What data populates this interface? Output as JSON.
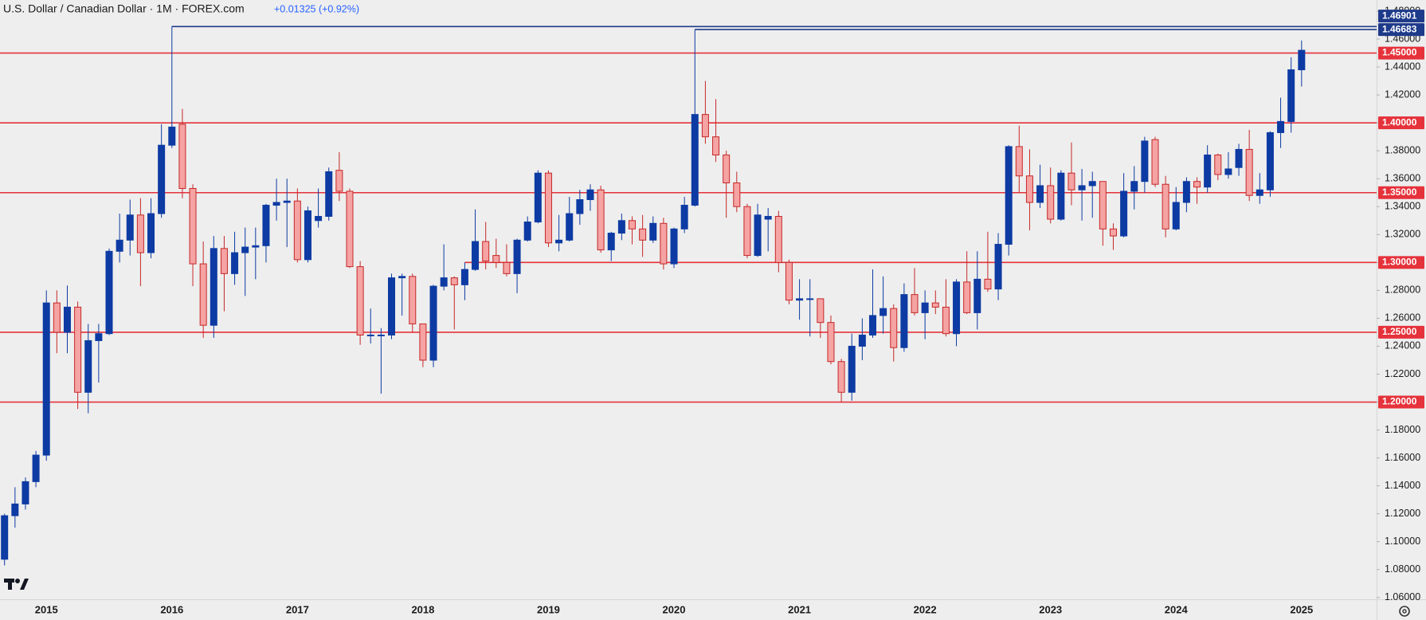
{
  "chart_data": {
    "type": "candlestick",
    "title": "U.S. Dollar / Canadian Dollar · 1M · FOREX.com",
    "change": "+0.01325 (+0.92%)",
    "categories": [
      null,
      null,
      null,
      null,
      "2015",
      null,
      null,
      null,
      null,
      null,
      null,
      null,
      null,
      null,
      null,
      null,
      "2016",
      null,
      null,
      null,
      null,
      null,
      null,
      null,
      null,
      null,
      null,
      null,
      "2017",
      null,
      null,
      null,
      null,
      null,
      null,
      null,
      null,
      null,
      null,
      null,
      "2018",
      null,
      null,
      null,
      null,
      null,
      null,
      null,
      null,
      null,
      null,
      null,
      "2019",
      null,
      null,
      null,
      null,
      null,
      null,
      null,
      null,
      null,
      null,
      null,
      "2020",
      null,
      null,
      null,
      null,
      null,
      null,
      null,
      null,
      null,
      null,
      null,
      "2021",
      null,
      null,
      null,
      null,
      null,
      null,
      null,
      null,
      null,
      null,
      null,
      "2022",
      null,
      null,
      null,
      null,
      null,
      null,
      null,
      null,
      null,
      null,
      null,
      "2023",
      null,
      null,
      null,
      null,
      null,
      null,
      null,
      null,
      null,
      null,
      null,
      "2024",
      null,
      null,
      null,
      null,
      null,
      null,
      null,
      null,
      null,
      null,
      null,
      "2025"
    ],
    "open": [
      1.0874,
      1.1186,
      1.127,
      1.143,
      1.162,
      1.271,
      1.25,
      1.268,
      1.207,
      1.244,
      1.249,
      1.308,
      1.316,
      1.334,
      1.307,
      1.335,
      1.384,
      1.399,
      1.353,
      1.299,
      1.255,
      1.31,
      1.292,
      1.307,
      1.311,
      1.312,
      1.341,
      1.343,
      1.344,
      1.302,
      1.33,
      1.333,
      1.366,
      1.351,
      1.297,
      1.248,
      1.248,
      1.248,
      1.289,
      1.29,
      1.256,
      1.23,
      1.283,
      1.289,
      1.284,
      1.295,
      1.315,
      1.305,
      1.3,
      1.292,
      1.316,
      1.329,
      1.364,
      1.314,
      1.316,
      1.335,
      1.345,
      1.352,
      1.309,
      1.321,
      1.33,
      1.324,
      1.316,
      1.328,
      1.299,
      1.324,
      1.341,
      1.406,
      1.39,
      1.377,
      1.357,
      1.34,
      1.305,
      1.331,
      1.333,
      1.3,
      1.273,
      1.274,
      1.274,
      1.257,
      1.229,
      1.207,
      1.24,
      1.248,
      1.262,
      1.267,
      1.239,
      1.277,
      1.264,
      1.271,
      1.268,
      1.249,
      1.286,
      1.264,
      1.288,
      1.281,
      1.313,
      1.383,
      1.362,
      1.343,
      1.355,
      1.331,
      1.364,
      1.352,
      1.355,
      1.358,
      1.324,
      1.319,
      1.351,
      1.358,
      1.388,
      1.356,
      1.324,
      1.343,
      1.358,
      1.354,
      1.377,
      1.363,
      1.368,
      1.381,
      1.348,
      1.352,
      1.393,
      1.401,
      1.438
    ],
    "high": [
      1.12,
      1.139,
      1.146,
      1.165,
      1.28,
      1.28,
      1.2835,
      1.272,
      1.256,
      1.256,
      1.31,
      1.335,
      1.345,
      1.346,
      1.346,
      1.399,
      1.46901,
      1.41,
      1.356,
      1.315,
      1.319,
      1.319,
      1.322,
      1.325,
      1.325,
      1.342,
      1.36,
      1.36,
      1.353,
      1.34,
      1.353,
      1.368,
      1.379,
      1.353,
      1.301,
      1.267,
      1.253,
      1.292,
      1.292,
      1.292,
      1.256,
      1.284,
      1.313,
      1.29,
      1.3,
      1.338,
      1.329,
      1.317,
      1.313,
      1.317,
      1.333,
      1.366,
      1.366,
      1.334,
      1.347,
      1.352,
      1.356,
      1.355,
      1.322,
      1.335,
      1.333,
      1.334,
      1.333,
      1.332,
      1.325,
      1.347,
      1.46683,
      1.43,
      1.417,
      1.38,
      1.365,
      1.342,
      1.342,
      1.339,
      1.337,
      1.302,
      1.288,
      1.288,
      1.274,
      1.262,
      1.231,
      1.249,
      1.26,
      1.295,
      1.29,
      1.27,
      1.285,
      1.296,
      1.28,
      1.28,
      1.288,
      1.288,
      1.308,
      1.308,
      1.322,
      1.321,
      1.384,
      1.398,
      1.381,
      1.37,
      1.368,
      1.366,
      1.386,
      1.367,
      1.365,
      1.358,
      1.328,
      1.364,
      1.369,
      1.39,
      1.39,
      1.362,
      1.354,
      1.361,
      1.361,
      1.384,
      1.378,
      1.379,
      1.385,
      1.395,
      1.364,
      1.394,
      1.418,
      1.447,
      1.459
    ],
    "low": [
      1.083,
      1.11,
      1.123,
      1.139,
      1.158,
      1.235,
      1.235,
      1.195,
      1.192,
      1.214,
      1.248,
      1.3,
      1.305,
      1.283,
      1.303,
      1.332,
      1.382,
      1.346,
      1.283,
      1.246,
      1.246,
      1.265,
      1.284,
      1.276,
      1.288,
      1.3,
      1.33,
      1.311,
      1.3,
      1.3,
      1.325,
      1.33,
      1.344,
      1.296,
      1.241,
      1.242,
      1.206,
      1.245,
      1.262,
      1.25,
      1.225,
      1.225,
      1.28,
      1.252,
      1.273,
      1.294,
      1.295,
      1.296,
      1.29,
      1.278,
      1.315,
      1.328,
      1.311,
      1.308,
      1.315,
      1.327,
      1.337,
      1.307,
      1.301,
      1.316,
      1.313,
      1.304,
      1.314,
      1.295,
      1.296,
      1.321,
      1.34,
      1.385,
      1.372,
      1.332,
      1.336,
      1.303,
      1.304,
      1.308,
      1.293,
      1.27,
      1.259,
      1.247,
      1.246,
      1.227,
      1.2,
      1.201,
      1.23,
      1.246,
      1.249,
      1.229,
      1.236,
      1.262,
      1.245,
      1.263,
      1.247,
      1.24,
      1.263,
      1.252,
      1.279,
      1.273,
      1.305,
      1.35,
      1.323,
      1.339,
      1.328,
      1.33,
      1.341,
      1.33,
      1.332,
      1.312,
      1.309,
      1.318,
      1.338,
      1.35,
      1.354,
      1.318,
      1.323,
      1.336,
      1.342,
      1.35,
      1.359,
      1.36,
      1.362,
      1.344,
      1.342,
      1.347,
      1.382,
      1.393,
      1.426
    ],
    "close": [
      1.1186,
      1.127,
      1.143,
      1.162,
      1.271,
      1.25,
      1.268,
      1.207,
      1.244,
      1.249,
      1.308,
      1.316,
      1.334,
      1.307,
      1.335,
      1.384,
      1.397,
      1.353,
      1.299,
      1.255,
      1.31,
      1.292,
      1.307,
      1.311,
      1.312,
      1.341,
      1.343,
      1.344,
      1.302,
      1.337,
      1.333,
      1.365,
      1.351,
      1.297,
      1.248,
      1.248,
      1.248,
      1.289,
      1.29,
      1.256,
      1.23,
      1.283,
      1.289,
      1.284,
      1.295,
      1.315,
      1.301,
      1.3,
      1.292,
      1.316,
      1.329,
      1.364,
      1.314,
      1.316,
      1.335,
      1.345,
      1.352,
      1.309,
      1.321,
      1.33,
      1.324,
      1.316,
      1.328,
      1.299,
      1.324,
      1.341,
      1.406,
      1.39,
      1.377,
      1.357,
      1.34,
      1.305,
      1.334,
      1.333,
      1.3,
      1.273,
      1.274,
      1.274,
      1.257,
      1.229,
      1.207,
      1.24,
      1.248,
      1.262,
      1.267,
      1.239,
      1.277,
      1.264,
      1.271,
      1.268,
      1.249,
      1.286,
      1.264,
      1.288,
      1.281,
      1.313,
      1.383,
      1.362,
      1.343,
      1.355,
      1.331,
      1.364,
      1.352,
      1.355,
      1.358,
      1.324,
      1.319,
      1.351,
      1.358,
      1.387,
      1.356,
      1.324,
      1.343,
      1.358,
      1.354,
      1.377,
      1.363,
      1.367,
      1.381,
      1.348,
      1.352,
      1.393,
      1.401,
      1.438,
      1.452
    ],
    "up_color": "#0d3ba3",
    "down_color": "#f5a3a3",
    "down_outline": "#c62828",
    "ylim": [
      1.0593,
      1.488
    ],
    "yticks": [
      {
        "value": 1.06,
        "label": "1.06000"
      },
      {
        "value": 1.08,
        "label": "1.08000"
      },
      {
        "value": 1.1,
        "label": "1.10000"
      },
      {
        "value": 1.12,
        "label": "1.12000"
      },
      {
        "value": 1.14,
        "label": "1.14000"
      },
      {
        "value": 1.16,
        "label": "1.16000"
      },
      {
        "value": 1.18,
        "label": "1.18000"
      },
      {
        "value": 1.2,
        "label": "1.20000"
      },
      {
        "value": 1.22,
        "label": "1.22000"
      },
      {
        "value": 1.24,
        "label": "1.24000"
      },
      {
        "value": 1.26,
        "label": "1.26000"
      },
      {
        "value": 1.28,
        "label": "1.28000"
      },
      {
        "value": 1.3,
        "label": "1.30000"
      },
      {
        "value": 1.32,
        "label": "1.32000"
      },
      {
        "value": 1.34,
        "label": "1.34000"
      },
      {
        "value": 1.36,
        "label": "1.36000"
      },
      {
        "value": 1.38,
        "label": "1.38000"
      },
      {
        "value": 1.4,
        "label": "1.40000"
      },
      {
        "value": 1.42,
        "label": "1.42000"
      },
      {
        "value": 1.44,
        "label": "1.44000"
      },
      {
        "value": 1.46,
        "label": "1.46000"
      },
      {
        "value": 1.48,
        "label": "1.48000"
      }
    ],
    "levels": [
      {
        "value": 1.46901,
        "color": "#1e3a8a"
      },
      {
        "value": 1.46683,
        "color": "#1e3a8a"
      },
      {
        "value": 1.45,
        "label": "1.45000",
        "color": "#e5323b"
      },
      {
        "value": 1.4,
        "label": "1.40000",
        "color": "#e5323b"
      },
      {
        "value": 1.35,
        "label": "1.35000",
        "color": "#e5323b"
      },
      {
        "value": 1.3,
        "label": "1.30000",
        "color": "#e5323b"
      },
      {
        "value": 1.25,
        "label": "1.25000",
        "color": "#e5323b"
      },
      {
        "value": 1.2,
        "label": "1.20000",
        "color": "#e5323b"
      }
    ]
  }
}
